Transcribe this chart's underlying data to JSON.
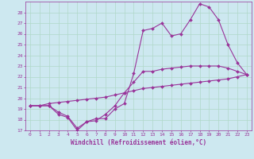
{
  "xlabel": "Windchill (Refroidissement éolien,°C)",
  "bg_color": "#cde8f0",
  "grid_color": "#b0d8c8",
  "line_color": "#993399",
  "xlim": [
    -0.5,
    23.5
  ],
  "ylim": [
    17,
    29
  ],
  "xticks": [
    0,
    1,
    2,
    3,
    4,
    5,
    6,
    7,
    8,
    9,
    10,
    11,
    12,
    13,
    14,
    15,
    16,
    17,
    18,
    19,
    20,
    21,
    22,
    23
  ],
  "yticks": [
    17,
    18,
    19,
    20,
    21,
    22,
    23,
    24,
    25,
    26,
    27,
    28
  ],
  "line1_x": [
    0,
    1,
    2,
    3,
    4,
    5,
    6,
    7,
    8,
    9,
    10,
    11,
    12,
    13,
    14,
    15,
    16,
    17,
    18,
    19,
    20,
    21,
    22,
    23
  ],
  "line1_y": [
    19.3,
    19.3,
    19.3,
    18.5,
    18.2,
    17.0,
    17.8,
    18.1,
    18.1,
    19.0,
    19.5,
    22.3,
    26.3,
    26.5,
    27.0,
    25.8,
    26.0,
    27.3,
    28.8,
    28.5,
    27.3,
    25.0,
    23.3,
    22.2
  ],
  "line2_x": [
    0,
    1,
    2,
    3,
    4,
    5,
    6,
    7,
    8,
    9,
    10,
    11,
    12,
    13,
    14,
    15,
    16,
    17,
    18,
    19,
    20,
    21,
    22,
    23
  ],
  "line2_y": [
    19.3,
    19.3,
    19.3,
    18.7,
    18.3,
    17.2,
    17.8,
    17.9,
    18.5,
    19.3,
    20.5,
    21.5,
    22.5,
    22.5,
    22.7,
    22.8,
    22.9,
    23.0,
    23.0,
    23.0,
    23.0,
    22.8,
    22.5,
    22.2
  ],
  "line3_x": [
    0,
    1,
    2,
    3,
    4,
    5,
    6,
    7,
    8,
    9,
    10,
    11,
    12,
    13,
    14,
    15,
    16,
    17,
    18,
    19,
    20,
    21,
    22,
    23
  ],
  "line3_y": [
    19.3,
    19.3,
    19.5,
    19.6,
    19.7,
    19.8,
    19.9,
    20.0,
    20.1,
    20.3,
    20.5,
    20.7,
    20.9,
    21.0,
    21.1,
    21.2,
    21.3,
    21.4,
    21.5,
    21.6,
    21.7,
    21.8,
    22.0,
    22.2
  ],
  "marker": "D",
  "markersize": 2.0,
  "linewidth": 0.8,
  "tick_fontsize": 4.5,
  "xlabel_fontsize": 5.5
}
